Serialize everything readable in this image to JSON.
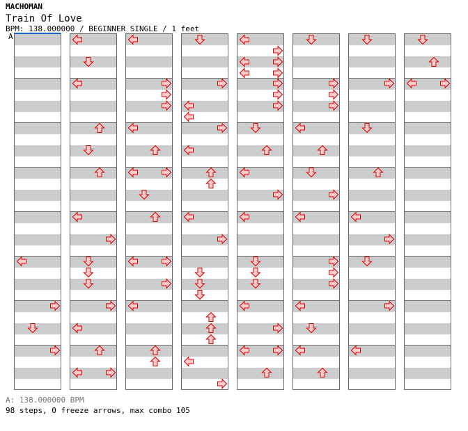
{
  "header": {
    "artist": "MACHOMAN",
    "title": "Train Of Love",
    "info": "BPM: 138.000000 / BEGINNER SINGLE / 1 feet",
    "bpm_marker": "A"
  },
  "footer": {
    "bpm_legend": "A: 138.000000 BPM",
    "summary": "98 steps, 0 freeze arrows, max combo 105"
  },
  "colors": {
    "arrow_fill": "#ffcccc",
    "arrow_stroke": "#dd0000",
    "stripe": "#cccccc",
    "bpm_marker": "#1a66cc"
  },
  "lanes": [
    "left",
    "down",
    "up",
    "right"
  ],
  "columns": [
    [
      "0000 0000 0000 0000",
      "0000 0000 0000 0000",
      "0000 0000 0000 0000",
      "0000 0000 0000 0000",
      "0000 0000 0000 0000",
      "1000 0000 0000 0000",
      "0001 0000 0100 0000",
      "0001 0000 0000 0000"
    ],
    [
      "1000 0000 0100 0000",
      "1000 0000 0000 0000",
      "0010 0000 0100 0000",
      "0010 0000 0000 0000",
      "1000 0000 0001 0000",
      "0100 0100 0100 0000",
      "0001 0000 1000 0000",
      "0010 0000 1001 0000"
    ],
    [
      "1000 0000 0000 0000",
      "0001 0001 0001 0000",
      "1000 0000 0010 0000",
      "1001 0000 0100 0000",
      "0010 0000 0000 0000",
      "1001 0000 0001 0000",
      "1000 0000 0000 0000",
      "0010 0010 0000 0000"
    ],
    [
      "0100 0000 0000 0000",
      "0001 0000 1000 1000",
      "0001 0000 1000 0000",
      "0010 0010 0000 0000",
      "1000 0000 0001 0000",
      "0000 0100 0100 0100",
      "0000 0010 0010 0010",
      "0000 1000 0000 0001"
    ],
    [
      "1000 0001 1001 1001",
      "0001 0001 0001 0000",
      "0100 0000 0010 0000",
      "1000 0000 0001 0000",
      "1000 0000 0000 0000",
      "0100 0100 0100 0000",
      "1000 0000 0001 0000",
      "1001 0000 0010 0000"
    ],
    [
      "0100 0000 0000 0000",
      "0001 0001 0001 0000",
      "1000 0000 0010 0000",
      "0100 0000 0001 0000",
      "1000 0000 0000 0000",
      "0001 0001 0001 0000",
      "1000 0000 0100 0000",
      "1000 0000 0010 0000"
    ],
    [
      "0100 0000 0000 0000",
      "0001 0000 0000 0000",
      "0100 0000 0000 0000",
      "0010 0000 0000 0000",
      "1000 0000 0001 0000",
      "0100 0000 0000 0000",
      "0001 0000 0000 0000",
      "1000 0000 0000 0000"
    ],
    [
      "0100 0000 0010 0000",
      "1001 0000 0000 0000",
      "0000 0000 0000 0000",
      "0000 0000 0000 0000",
      "0000 0000 0000 0000",
      "0000 0000 0000 0000",
      "0000 0000 0000 0000",
      "0000 0000 0000 0000"
    ]
  ]
}
